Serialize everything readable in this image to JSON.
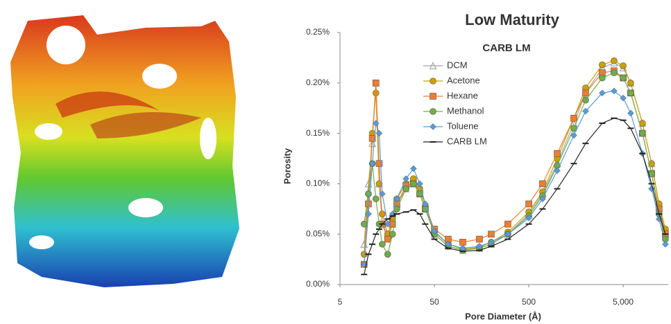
{
  "chart_data": {
    "type": "line",
    "title": "Low Maturity",
    "subtitle": "CARB LM",
    "x_label": "Pore Diameter (Å)",
    "y_label": "Porosity",
    "x_scale": "log",
    "xlim": [
      5,
      15000
    ],
    "xticks": [
      5,
      50,
      500,
      {
        "value": 5000,
        "label": "5,000"
      }
    ],
    "ylim": [
      0,
      0.25
    ],
    "yticks": [
      {
        "value": 0,
        "label": "0.00%"
      },
      {
        "value": 0.05,
        "label": "0.05%"
      },
      {
        "value": 0.1,
        "label": "0.10%"
      },
      {
        "value": 0.15,
        "label": "0.15%"
      },
      {
        "value": 0.2,
        "label": "0.20%"
      },
      {
        "value": 0.25,
        "label": "0.25%"
      }
    ],
    "x": [
      9,
      10,
      11,
      12,
      13,
      14,
      16,
      18,
      20,
      25,
      30,
      35,
      40,
      50,
      70,
      100,
      150,
      200,
      300,
      500,
      700,
      1000,
      1500,
      2000,
      3000,
      4000,
      5000,
      6000,
      8000,
      10000,
      12000,
      14000
    ],
    "series": [
      {
        "name": "DCM",
        "color": "#a5a5a5",
        "marker": "triangle",
        "values": [
          0.04,
          0.1,
          0.14,
          0.2,
          0.1,
          0.06,
          0.05,
          0.06,
          0.08,
          0.095,
          0.1,
          0.09,
          0.075,
          0.05,
          0.038,
          0.034,
          0.036,
          0.04,
          0.05,
          0.07,
          0.09,
          0.12,
          0.16,
          0.19,
          0.215,
          0.22,
          0.215,
          0.2,
          0.16,
          0.12,
          0.08,
          0.05
        ]
      },
      {
        "name": "Acetone",
        "color": "#c9a100",
        "marker": "circle",
        "values": [
          0.03,
          0.09,
          0.15,
          0.19,
          0.1,
          0.07,
          0.05,
          0.065,
          0.085,
          0.1,
          0.105,
          0.095,
          0.078,
          0.052,
          0.04,
          0.035,
          0.037,
          0.042,
          0.052,
          0.072,
          0.092,
          0.125,
          0.165,
          0.195,
          0.218,
          0.222,
          0.217,
          0.2,
          0.16,
          0.12,
          0.08,
          0.055
        ]
      },
      {
        "name": "Hexane",
        "color": "#ed7d31",
        "marker": "square",
        "values": [
          0.02,
          0.08,
          0.145,
          0.2,
          0.12,
          0.06,
          0.045,
          0.06,
          0.08,
          0.098,
          0.1,
          0.09,
          0.075,
          0.055,
          0.045,
          0.042,
          0.045,
          0.05,
          0.06,
          0.08,
          0.1,
          0.13,
          0.165,
          0.19,
          0.21,
          0.212,
          0.205,
          0.19,
          0.15,
          0.11,
          0.075,
          0.05
        ]
      },
      {
        "name": "Methanol",
        "color": "#70ad47",
        "marker": "circle",
        "values": [
          0.06,
          0.09,
          0.12,
          0.085,
          0.06,
          0.04,
          0.03,
          0.05,
          0.075,
          0.095,
          0.1,
          0.09,
          0.075,
          0.05,
          0.038,
          0.034,
          0.036,
          0.04,
          0.05,
          0.068,
          0.088,
          0.118,
          0.155,
          0.183,
          0.205,
          0.21,
          0.205,
          0.19,
          0.15,
          0.11,
          0.07,
          0.045
        ]
      },
      {
        "name": "Toluene",
        "color": "#5b9bd5",
        "marker": "diamond",
        "values": [
          0.02,
          0.07,
          0.12,
          0.16,
          0.15,
          0.09,
          0.06,
          0.07,
          0.085,
          0.105,
          0.115,
          0.1,
          0.08,
          0.053,
          0.04,
          0.036,
          0.038,
          0.042,
          0.05,
          0.066,
          0.085,
          0.113,
          0.148,
          0.172,
          0.19,
          0.192,
          0.185,
          0.17,
          0.13,
          0.095,
          0.065,
          0.04
        ]
      },
      {
        "name": "CARB LM",
        "color": "#222222",
        "marker": "dash",
        "values": [
          0.01,
          0.03,
          0.04,
          0.05,
          0.055,
          0.06,
          0.065,
          0.068,
          0.07,
          0.072,
          0.074,
          0.07,
          0.06,
          0.045,
          0.036,
          0.033,
          0.034,
          0.038,
          0.045,
          0.06,
          0.075,
          0.095,
          0.12,
          0.14,
          0.16,
          0.165,
          0.163,
          0.155,
          0.13,
          0.1,
          0.07,
          0.05
        ]
      }
    ]
  }
}
